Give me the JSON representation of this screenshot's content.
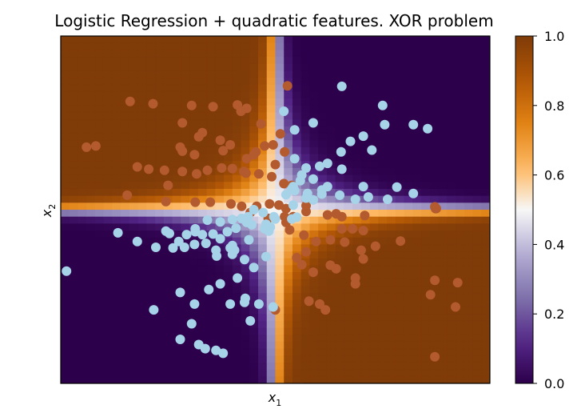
{
  "chart_data": {
    "type": "heatmap",
    "title": "Logistic Regression + quadratic features. XOR problem",
    "xlabel_main": "x",
    "xlabel_sub": "1",
    "ylabel_main": "x",
    "ylabel_sub": "2",
    "xlim": [
      -3.0,
      3.0
    ],
    "ylim": [
      -3.0,
      3.0
    ],
    "grid": false,
    "heatmap": {
      "description": "predicted probability P(class 1) = sigmoid(w * x1 * x2) over the plane",
      "weight": -6.0,
      "resolution": 50
    },
    "colorbar": {
      "colormap": "PuOr",
      "range": [
        0.0,
        1.0
      ],
      "tick_values": [
        0.0,
        0.2,
        0.4,
        0.6,
        0.8,
        1.0
      ],
      "tick_labels": [
        "0.0",
        "0.2",
        "0.4",
        "0.6",
        "0.8",
        "1.0"
      ]
    },
    "series": [
      {
        "color": "#b35a2e",
        "points": [
          [
            -2.03,
            1.87
          ],
          [
            -1.71,
            1.83
          ],
          [
            -1.17,
            1.8
          ],
          [
            -0.87,
            1.78
          ],
          [
            -0.53,
            1.81
          ],
          [
            -0.4,
            1.75
          ],
          [
            -0.48,
            1.7
          ],
          [
            -0.2,
            1.48
          ],
          [
            -1.3,
            1.5
          ],
          [
            0.17,
            2.14
          ],
          [
            -2.64,
            1.08
          ],
          [
            -2.51,
            1.1
          ],
          [
            -1.33,
            1.08
          ],
          [
            -1.07,
            1.26
          ],
          [
            -1.02,
            1.33
          ],
          [
            -0.77,
            1.2
          ],
          [
            -0.63,
            1.12
          ],
          [
            -1.3,
            1.01
          ],
          [
            -1.13,
            0.95
          ],
          [
            -0.73,
            1.02
          ],
          [
            -0.15,
            1.1
          ],
          [
            -0.27,
            1.0
          ],
          [
            0.07,
            1.31
          ],
          [
            -0.03,
            1.12
          ],
          [
            0.13,
            1.0
          ],
          [
            -0.4,
            0.88
          ],
          [
            -0.3,
            0.95
          ],
          [
            0.0,
            0.78
          ],
          [
            -1.93,
            0.74
          ],
          [
            -1.77,
            0.7
          ],
          [
            -1.55,
            0.68
          ],
          [
            -1.3,
            0.66
          ],
          [
            -1.1,
            0.62
          ],
          [
            -0.95,
            0.68
          ],
          [
            -0.75,
            0.72
          ],
          [
            -0.6,
            0.71
          ],
          [
            -0.44,
            0.66
          ],
          [
            -0.41,
            0.63
          ],
          [
            -0.23,
            0.62
          ],
          [
            -0.05,
            0.57
          ],
          [
            -1.5,
            0.42
          ],
          [
            -2.07,
            0.25
          ],
          [
            -1.53,
            0.14
          ],
          [
            -1.12,
            0.13
          ],
          [
            -0.91,
            0.13
          ],
          [
            -0.62,
            0.1
          ],
          [
            -0.47,
            0.06
          ],
          [
            -0.26,
            0.06
          ],
          [
            -0.08,
            0.1
          ],
          [
            0.12,
            0.45
          ],
          [
            0.23,
            0.42
          ],
          [
            0.05,
            0.08
          ],
          [
            0.15,
            0.02
          ],
          [
            -0.35,
            -0.05
          ],
          [
            -0.1,
            -0.15
          ],
          [
            0.13,
            -0.12
          ],
          [
            0.43,
            -0.03
          ],
          [
            0.73,
            -0.09
          ],
          [
            0.85,
            -0.07
          ],
          [
            0.93,
            -0.12
          ],
          [
            1.25,
            -0.1
          ],
          [
            0.93,
            -0.33
          ],
          [
            1.08,
            -0.33
          ],
          [
            1.23,
            -0.36
          ],
          [
            0.2,
            -0.35
          ],
          [
            0.4,
            -0.44
          ],
          [
            0.57,
            -0.55
          ],
          [
            0.77,
            -0.52
          ],
          [
            0.97,
            -0.56
          ],
          [
            1.2,
            -0.7
          ],
          [
            0.43,
            -0.73
          ],
          [
            0.3,
            -0.83
          ],
          [
            0.37,
            -0.95
          ],
          [
            0.53,
            -1.08
          ],
          [
            0.77,
            -0.96
          ],
          [
            0.85,
            -1.02
          ],
          [
            1.12,
            -1.18
          ],
          [
            1.12,
            -1.28
          ],
          [
            1.4,
            -0.63
          ],
          [
            1.75,
            -0.54
          ],
          [
            2.23,
            -1.22
          ],
          [
            2.17,
            -1.47
          ],
          [
            2.55,
            -1.26
          ],
          [
            2.52,
            -1.68
          ],
          [
            2.23,
            -2.54
          ],
          [
            0.47,
            -1.58
          ],
          [
            0.62,
            -1.63
          ],
          [
            0.7,
            -1.73
          ],
          [
            0.0,
            -1.73
          ],
          [
            1.23,
            -0.85
          ],
          [
            0.37,
            -3.07
          ],
          [
            2.23,
            0.05
          ],
          [
            0.43,
            0.07
          ],
          [
            0.25,
            -0.12
          ],
          [
            0.15,
            -0.22
          ],
          [
            2.24,
            0.02
          ],
          [
            2.25,
            0.02
          ],
          [
            2.24,
            0.03
          ]
        ]
      },
      {
        "color": "#a6d3e8",
        "points": [
          [
            0.93,
            2.13
          ],
          [
            1.5,
            1.8
          ],
          [
            1.53,
            1.47
          ],
          [
            1.93,
            1.47
          ],
          [
            2.13,
            1.4
          ],
          [
            0.12,
            1.7
          ],
          [
            0.27,
            1.38
          ],
          [
            0.53,
            1.5
          ],
          [
            1.35,
            1.03
          ],
          [
            1.05,
            1.18
          ],
          [
            1.23,
            1.27
          ],
          [
            0.92,
            1.0
          ],
          [
            0.73,
            0.8
          ],
          [
            0.62,
            0.75
          ],
          [
            0.93,
            0.7
          ],
          [
            0.43,
            0.72
          ],
          [
            0.27,
            0.88
          ],
          [
            0.37,
            0.6
          ],
          [
            0.53,
            0.53
          ],
          [
            0.35,
            0.5
          ],
          [
            0.23,
            0.36
          ],
          [
            0.27,
            0.33
          ],
          [
            0.15,
            0.26
          ],
          [
            0.45,
            0.28
          ],
          [
            0.65,
            0.27
          ],
          [
            0.65,
            0.34
          ],
          [
            0.73,
            0.4
          ],
          [
            0.53,
            0.17
          ],
          [
            0.25,
            0.08
          ],
          [
            0.9,
            0.25
          ],
          [
            1.23,
            0.4
          ],
          [
            1.3,
            0.22
          ],
          [
            1.7,
            0.39
          ],
          [
            1.93,
            0.28
          ],
          [
            1.57,
            0.18
          ],
          [
            1.12,
            0.18
          ],
          [
            0.43,
            0.2
          ],
          [
            0.25,
            0.4
          ],
          [
            0.3,
            -0.13
          ],
          [
            -0.07,
            -0.3
          ],
          [
            -0.4,
            -0.22
          ],
          [
            -0.55,
            -0.32
          ],
          [
            -0.67,
            -0.38
          ],
          [
            -0.87,
            -0.42
          ],
          [
            -0.77,
            -0.5
          ],
          [
            -0.97,
            -0.58
          ],
          [
            -1.13,
            -0.6
          ],
          [
            -1.27,
            -0.65
          ],
          [
            -1.43,
            -0.66
          ],
          [
            -1.67,
            -0.65
          ],
          [
            -1.93,
            -0.55
          ],
          [
            -1.53,
            -0.37
          ],
          [
            -1.02,
            -0.43
          ],
          [
            -0.83,
            -0.7
          ],
          [
            -0.63,
            -0.66
          ],
          [
            -0.6,
            -0.77
          ],
          [
            -0.43,
            -0.86
          ],
          [
            -0.13,
            -0.81
          ],
          [
            -0.3,
            -1.0
          ],
          [
            -0.53,
            -1.18
          ],
          [
            -0.77,
            -1.28
          ],
          [
            -0.93,
            -1.38
          ],
          [
            -1.13,
            -1.63
          ],
          [
            -1.33,
            -1.43
          ],
          [
            -0.63,
            -1.63
          ],
          [
            -0.43,
            -1.6
          ],
          [
            -0.23,
            -1.63
          ],
          [
            -0.03,
            -1.68
          ],
          [
            -1.7,
            -1.73
          ],
          [
            -1.17,
            -1.97
          ],
          [
            -1.33,
            -2.24
          ],
          [
            -1.07,
            -2.33
          ],
          [
            -0.98,
            -2.4
          ],
          [
            -0.83,
            -2.43
          ],
          [
            -0.73,
            -2.48
          ],
          [
            -0.35,
            -1.92
          ],
          [
            -0.42,
            -1.53
          ],
          [
            -0.57,
            -0.7
          ],
          [
            -0.37,
            -0.52
          ],
          [
            -0.15,
            -0.33
          ],
          [
            -0.02,
            -0.12
          ],
          [
            -0.17,
            -0.05
          ],
          [
            -0.33,
            -0.26
          ],
          [
            -0.47,
            -0.15
          ],
          [
            -0.3,
            0.0
          ],
          [
            -0.38,
            -0.12
          ],
          [
            -0.6,
            -0.17
          ],
          [
            -0.77,
            -0.21
          ],
          [
            -0.95,
            -0.18
          ],
          [
            -1.12,
            -0.33
          ],
          [
            -1.24,
            -0.43
          ],
          [
            -1.12,
            -0.38
          ],
          [
            -2.2,
            -0.4
          ],
          [
            -2.92,
            -1.06
          ],
          [
            0.0,
            -0.16
          ],
          [
            0.23,
            -0.16
          ],
          [
            -0.13,
            -0.25
          ],
          [
            -0.09,
            -0.37
          ],
          [
            -0.6,
            -0.62
          ],
          [
            -0.82,
            -0.8
          ],
          [
            -1.48,
            -0.41
          ],
          [
            -1.35,
            -0.55
          ]
        ]
      }
    ]
  }
}
